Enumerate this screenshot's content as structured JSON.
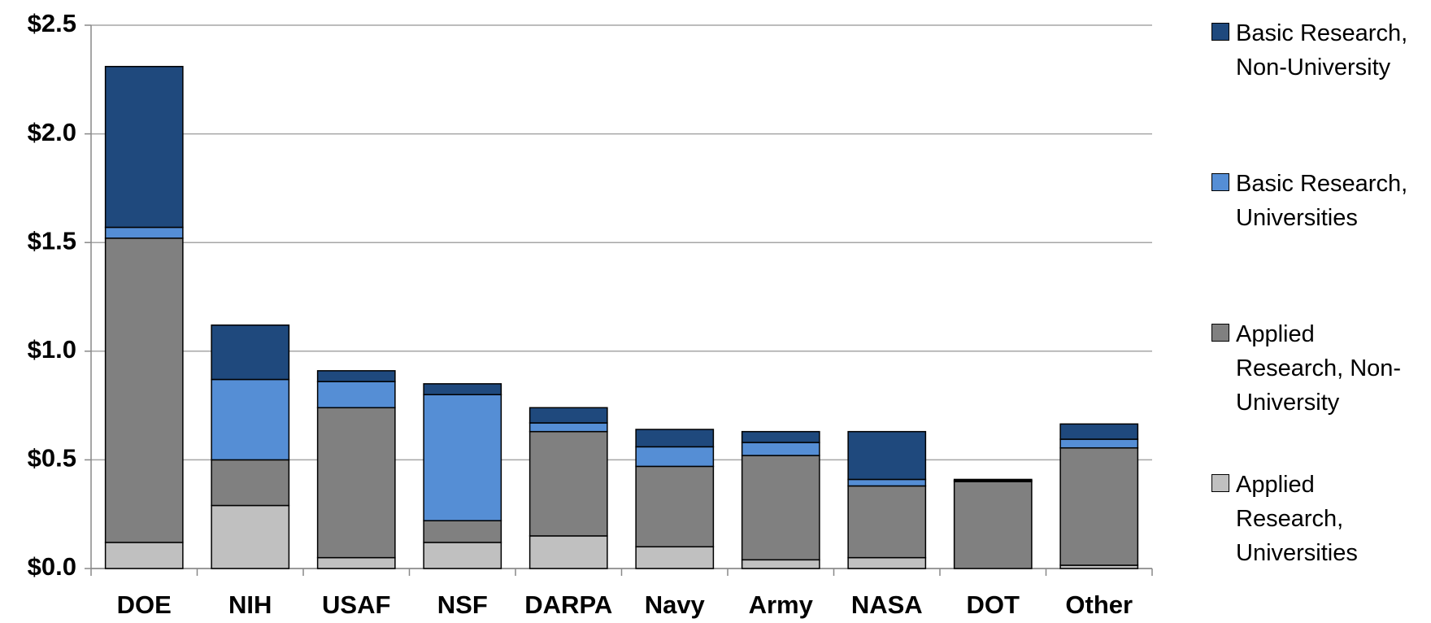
{
  "chart_data": {
    "type": "stacked_bar",
    "categories": [
      "DOE",
      "NIH",
      "USAF",
      "NSF",
      "DARPA",
      "Navy",
      "Army",
      "NASA",
      "DOT",
      "Other"
    ],
    "series": [
      {
        "name": "Applied Research, Universities",
        "color": "#c0c0c0",
        "values": [
          0.12,
          0.29,
          0.05,
          0.12,
          0.15,
          0.1,
          0.04,
          0.05,
          0,
          0.015
        ]
      },
      {
        "name": "Applied Research, Non-University",
        "color": "#808080",
        "values": [
          1.4,
          0.21,
          0.69,
          0.1,
          0.48,
          0.37,
          0.48,
          0.33,
          0.4,
          0.54
        ]
      },
      {
        "name": "Basic Research, Universities",
        "color": "#558ed5",
        "values": [
          0.05,
          0.37,
          0.12,
          0.58,
          0.04,
          0.09,
          0.06,
          0.03,
          0.005,
          0.04
        ]
      },
      {
        "name": "Basic Research, Non-University",
        "color": "#1f497d",
        "values": [
          0.74,
          0.25,
          0.05,
          0.05,
          0.07,
          0.08,
          0.05,
          0.22,
          0.005,
          0.07
        ]
      }
    ],
    "ylim": [
      0,
      2.5
    ],
    "yticks": [
      {
        "value": 0,
        "label": "$0.0"
      },
      {
        "value": 0.5,
        "label": "$0.5"
      },
      {
        "value": 1,
        "label": "$1.0"
      },
      {
        "value": 1.5,
        "label": "$1.5"
      },
      {
        "value": 2,
        "label": "$2.0"
      },
      {
        "value": 2.5,
        "label": "$2.5"
      }
    ],
    "grid": true,
    "legend": "right"
  }
}
